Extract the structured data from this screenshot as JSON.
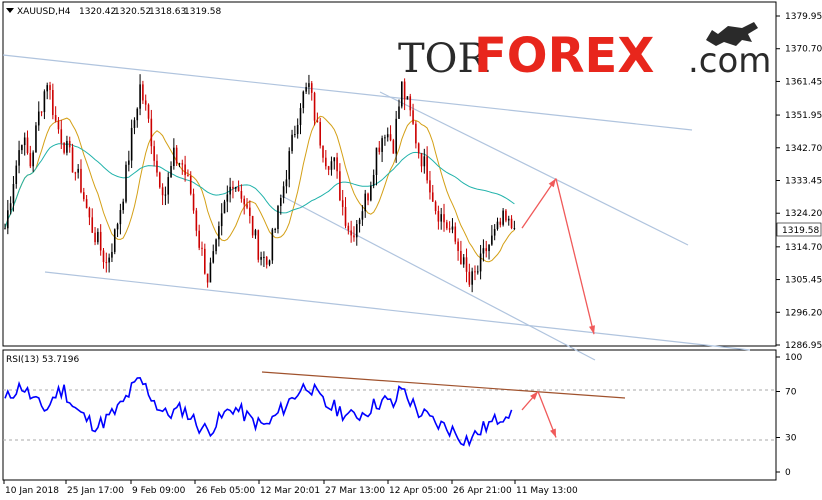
{
  "instrument": {
    "symbol_tf": "XAUUSD,H4",
    "open": "1320.42",
    "high": "1320.52",
    "low": "1318.63",
    "close": "1319.58"
  },
  "logo": {
    "part1": "TOR",
    "part2": "FOREX",
    "part3": ".com"
  },
  "rsi_label": "RSI(13) 53.7196",
  "price_axis_labels": [
    "1379.95",
    "1370.70",
    "1361.45",
    "1351.95",
    "1342.70",
    "1333.45",
    "1324.20",
    "1314.70",
    "1305.45",
    "1296.20",
    "1286.95"
  ],
  "current_price_label": "1319.58",
  "rsi_axis_labels": [
    "100",
    "70",
    "30",
    "0"
  ],
  "time_labels": [
    "10 Jan 2018",
    "25 Jan 17:00",
    "9 Feb 09:00",
    "26 Feb 05:00",
    "12 Mar 20:01",
    "27 Mar 13:00",
    "12 Apr 05:00",
    "26 Apr 21:00",
    "11 May 13:00"
  ],
  "colors": {
    "bull_candle": "#000000",
    "bear_candle": "#cc0000",
    "ma_fast": "#d4a017",
    "ma_slow": "#20b2aa",
    "trendline": "#b0c4de",
    "arrow": "#f05a5a",
    "rsi_line": "#0000ff",
    "rsi_trend": "#a0522d"
  },
  "chart_data": [
    {
      "type": "candlestick",
      "title": "XAUUSD,H4",
      "ylim": [
        1286.95,
        1384.0
      ],
      "y_ticks": [
        1379.95,
        1370.7,
        1361.45,
        1351.95,
        1342.7,
        1333.45,
        1324.2,
        1314.7,
        1305.45,
        1296.2,
        1286.95
      ],
      "series": [
        {
          "name": "price_close_path",
          "values": [
            1320,
            1334,
            1346,
            1338,
            1352,
            1362,
            1350,
            1344,
            1338,
            1332,
            1322,
            1316,
            1310,
            1318,
            1330,
            1346,
            1360,
            1350,
            1336,
            1330,
            1340,
            1338,
            1330,
            1316,
            1306,
            1314,
            1326,
            1334,
            1330,
            1322,
            1314,
            1310,
            1320,
            1332,
            1344,
            1356,
            1360,
            1348,
            1340,
            1338,
            1326,
            1318,
            1324,
            1330,
            1342,
            1348,
            1344,
            1360,
            1352,
            1342,
            1336,
            1326,
            1322,
            1318,
            1312,
            1304,
            1308,
            1314,
            1318,
            1322,
            1320
          ]
        }
      ],
      "projection_points": [
        1320,
        1334,
        1290
      ]
    },
    {
      "type": "line",
      "title": "RSI(13) 53.7196",
      "ylim": [
        0,
        100
      ],
      "y_ticks": [
        100,
        70,
        30,
        0
      ],
      "series": [
        {
          "name": "RSI(13)",
          "values": [
            62,
            70,
            75,
            66,
            58,
            55,
            68,
            72,
            58,
            50,
            44,
            40,
            46,
            52,
            60,
            72,
            80,
            70,
            58,
            50,
            52,
            55,
            48,
            40,
            36,
            42,
            50,
            56,
            52,
            46,
            42,
            40,
            48,
            56,
            64,
            72,
            76,
            66,
            58,
            56,
            52,
            48,
            50,
            54,
            60,
            62,
            58,
            74,
            62,
            52,
            48,
            42,
            40,
            36,
            30,
            28,
            34,
            40,
            44,
            50,
            54
          ]
        }
      ],
      "projection_points": [
        54,
        70,
        30
      ]
    }
  ]
}
